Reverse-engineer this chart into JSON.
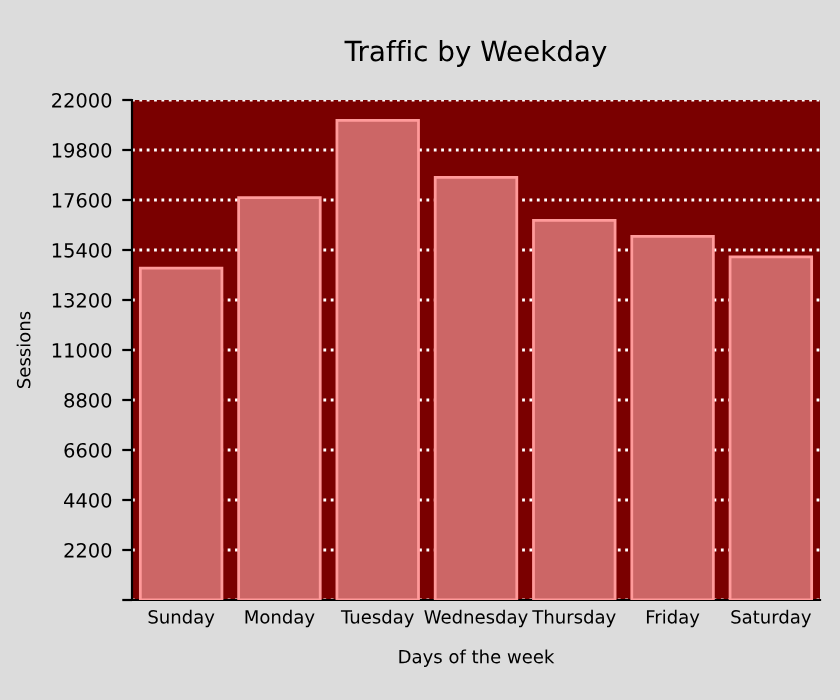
{
  "chart_data": {
    "type": "bar",
    "title": "Traffic by Weekday",
    "xlabel": "Days of the week",
    "ylabel": "Sessions",
    "categories": [
      "Sunday",
      "Monday",
      "Tuesday",
      "Wednesday",
      "Thursday",
      "Friday",
      "Saturday"
    ],
    "values": [
      14600,
      17700,
      21100,
      18600,
      16700,
      16000,
      15100
    ],
    "color": "#cc6666",
    "ylim": [
      0,
      22000
    ],
    "yticks": [
      {
        "value": 0,
        "label": null
      },
      2200,
      4400,
      6600,
      8800,
      11000,
      13200,
      15400,
      17600,
      19800,
      22000
    ],
    "bands": [
      {
        "axis": "y",
        "from": 0,
        "to": 22000,
        "color": "#7a0000"
      }
    ],
    "grid": "y"
  }
}
